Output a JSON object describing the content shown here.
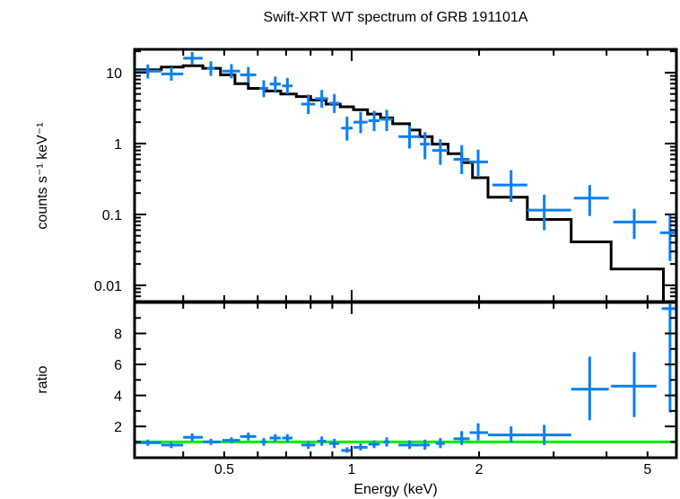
{
  "chart_data": [
    {
      "panel": "spectrum",
      "type": "scatter",
      "title": "Swift-XRT WT spectrum of GRB 191101A",
      "xlabel": "Energy (keV)",
      "ylabel": "counts s⁻¹ keV⁻¹",
      "xscale": "log",
      "yscale": "log",
      "xlim": [
        0.307,
        5.85
      ],
      "ylim": [
        0.0059,
        21.3
      ],
      "yticks": [
        {
          "value": 10,
          "label": "10"
        },
        {
          "value": 1,
          "label": "1"
        },
        {
          "value": 0.1,
          "label": "0.1"
        },
        {
          "value": 0.01,
          "label": "0.01"
        }
      ],
      "grid": false,
      "series": [
        {
          "name": "data",
          "color": "#0a7ff0",
          "style": "crosses",
          "points": [
            {
              "x": 0.33,
              "xlo": 0.307,
              "xhi": 0.355,
              "y": 10.5,
              "ylo": 8.3,
              "yhi": 13.0
            },
            {
              "x": 0.375,
              "xlo": 0.355,
              "xhi": 0.4,
              "y": 9.6,
              "ylo": 7.7,
              "yhi": 12.0
            },
            {
              "x": 0.42,
              "xlo": 0.4,
              "xhi": 0.445,
              "y": 16.0,
              "ylo": 13.0,
              "yhi": 19.5
            },
            {
              "x": 0.465,
              "xlo": 0.455,
              "xhi": 0.475,
              "y": 11.5,
              "ylo": 9.0,
              "yhi": 14.5
            },
            {
              "x": 0.52,
              "xlo": 0.495,
              "xhi": 0.545,
              "y": 10.5,
              "ylo": 8.3,
              "yhi": 13.2
            },
            {
              "x": 0.57,
              "xlo": 0.545,
              "xhi": 0.595,
              "y": 9.3,
              "ylo": 7.2,
              "yhi": 12.0
            },
            {
              "x": 0.62,
              "xlo": 0.605,
              "xhi": 0.635,
              "y": 6.0,
              "ylo": 4.5,
              "yhi": 7.8
            },
            {
              "x": 0.66,
              "xlo": 0.64,
              "xhi": 0.68,
              "y": 6.9,
              "ylo": 5.4,
              "yhi": 8.8
            },
            {
              "x": 0.705,
              "xlo": 0.685,
              "xhi": 0.725,
              "y": 6.5,
              "ylo": 5.0,
              "yhi": 8.4
            },
            {
              "x": 0.79,
              "xlo": 0.76,
              "xhi": 0.82,
              "y": 3.6,
              "ylo": 2.6,
              "yhi": 4.9
            },
            {
              "x": 0.85,
              "xlo": 0.82,
              "xhi": 0.88,
              "y": 4.3,
              "ylo": 3.2,
              "yhi": 5.7
            },
            {
              "x": 0.91,
              "xlo": 0.885,
              "xhi": 0.935,
              "y": 3.7,
              "ylo": 2.7,
              "yhi": 5.0
            },
            {
              "x": 0.975,
              "xlo": 0.945,
              "xhi": 1.005,
              "y": 1.65,
              "ylo": 1.1,
              "yhi": 2.4
            },
            {
              "x": 1.05,
              "xlo": 1.01,
              "xhi": 1.09,
              "y": 2.0,
              "ylo": 1.4,
              "yhi": 2.8
            },
            {
              "x": 1.13,
              "xlo": 1.095,
              "xhi": 1.165,
              "y": 2.1,
              "ylo": 1.5,
              "yhi": 2.9
            },
            {
              "x": 1.21,
              "xlo": 1.17,
              "xhi": 1.25,
              "y": 2.2,
              "ylo": 1.5,
              "yhi": 3.0
            },
            {
              "x": 1.37,
              "xlo": 1.29,
              "xhi": 1.45,
              "y": 1.25,
              "ylo": 0.85,
              "yhi": 1.8
            },
            {
              "x": 1.49,
              "xlo": 1.45,
              "xhi": 1.53,
              "y": 0.98,
              "ylo": 0.6,
              "yhi": 1.45
            },
            {
              "x": 1.62,
              "xlo": 1.55,
              "xhi": 1.69,
              "y": 0.8,
              "ylo": 0.5,
              "yhi": 1.15
            },
            {
              "x": 1.82,
              "xlo": 1.74,
              "xhi": 1.9,
              "y": 0.6,
              "ylo": 0.37,
              "yhi": 0.95
            },
            {
              "x": 1.99,
              "xlo": 1.9,
              "xhi": 2.1,
              "y": 0.55,
              "ylo": 0.35,
              "yhi": 0.82
            },
            {
              "x": 2.38,
              "xlo": 2.15,
              "xhi": 2.6,
              "y": 0.26,
              "ylo": 0.15,
              "yhi": 0.42
            },
            {
              "x": 2.85,
              "xlo": 2.6,
              "xhi": 3.3,
              "y": 0.115,
              "ylo": 0.06,
              "yhi": 0.19
            },
            {
              "x": 3.65,
              "xlo": 3.35,
              "xhi": 4.05,
              "y": 0.17,
              "ylo": 0.095,
              "yhi": 0.26
            },
            {
              "x": 4.65,
              "xlo": 4.15,
              "xhi": 5.25,
              "y": 0.078,
              "ylo": 0.045,
              "yhi": 0.12
            },
            {
              "x": 5.65,
              "xlo": 5.35,
              "xhi": 5.85,
              "y": 0.055,
              "ylo": 0.022,
              "yhi": 0.1
            }
          ]
        },
        {
          "name": "model",
          "color": "#000000",
          "style": "step",
          "steps": [
            {
              "xlo": 0.307,
              "xhi": 0.355,
              "y": 11.0
            },
            {
              "xlo": 0.355,
              "xhi": 0.4,
              "y": 12.0
            },
            {
              "xlo": 0.4,
              "xhi": 0.445,
              "y": 12.5
            },
            {
              "xlo": 0.445,
              "xhi": 0.49,
              "y": 11.5
            },
            {
              "xlo": 0.49,
              "xhi": 0.53,
              "y": 9.3
            },
            {
              "xlo": 0.53,
              "xhi": 0.57,
              "y": 7.0
            },
            {
              "xlo": 0.57,
              "xhi": 0.625,
              "y": 6.0
            },
            {
              "xlo": 0.625,
              "xhi": 0.68,
              "y": 5.5
            },
            {
              "xlo": 0.68,
              "xhi": 0.74,
              "y": 5.0
            },
            {
              "xlo": 0.74,
              "xhi": 0.8,
              "y": 4.6
            },
            {
              "xlo": 0.8,
              "xhi": 0.87,
              "y": 4.1
            },
            {
              "xlo": 0.87,
              "xhi": 0.94,
              "y": 3.6
            },
            {
              "xlo": 0.94,
              "xhi": 1.01,
              "y": 3.3
            },
            {
              "xlo": 1.01,
              "xhi": 1.09,
              "y": 3.0
            },
            {
              "xlo": 1.09,
              "xhi": 1.17,
              "y": 2.6
            },
            {
              "xlo": 1.17,
              "xhi": 1.25,
              "y": 2.3
            },
            {
              "xlo": 1.25,
              "xhi": 1.37,
              "y": 1.9
            },
            {
              "xlo": 1.37,
              "xhi": 1.45,
              "y": 1.55
            },
            {
              "xlo": 1.45,
              "xhi": 1.55,
              "y": 1.25
            },
            {
              "xlo": 1.55,
              "xhi": 1.69,
              "y": 0.98
            },
            {
              "xlo": 1.69,
              "xhi": 1.82,
              "y": 0.72
            },
            {
              "xlo": 1.82,
              "xhi": 1.93,
              "y": 0.54
            },
            {
              "xlo": 1.93,
              "xhi": 2.1,
              "y": 0.33
            },
            {
              "xlo": 2.1,
              "xhi": 2.6,
              "y": 0.175
            },
            {
              "xlo": 2.6,
              "xhi": 3.3,
              "y": 0.085
            },
            {
              "xlo": 3.3,
              "xhi": 4.1,
              "y": 0.041
            },
            {
              "xlo": 4.1,
              "xhi": 5.45,
              "y": 0.017
            },
            {
              "xlo": 5.45,
              "xhi": 5.85,
              "y": 0.0059
            }
          ]
        }
      ]
    },
    {
      "panel": "ratio",
      "type": "scatter",
      "xlabel": "Energy (keV)",
      "ylabel": "ratio",
      "xscale": "log",
      "yscale": "linear",
      "xlim": [
        0.307,
        5.85
      ],
      "ylim": [
        -0.02,
        10.0
      ],
      "xticks": [
        {
          "value": 0.5,
          "label": "0.5"
        },
        {
          "value": 1,
          "label": "1"
        },
        {
          "value": 2,
          "label": "2"
        },
        {
          "value": 5,
          "label": "5"
        }
      ],
      "yticks": [
        {
          "value": 2,
          "label": "2"
        },
        {
          "value": 4,
          "label": "4"
        },
        {
          "value": 6,
          "label": "6"
        },
        {
          "value": 8,
          "label": "8"
        }
      ],
      "reference_line": {
        "y": 1,
        "color": "#00ee00"
      },
      "grid": false,
      "series": [
        {
          "name": "ratio",
          "color": "#0a7ff0",
          "style": "crosses",
          "points": [
            {
              "x": 0.33,
              "xlo": 0.307,
              "xhi": 0.355,
              "y": 0.95,
              "ylo": 0.75,
              "yhi": 1.15
            },
            {
              "x": 0.375,
              "xlo": 0.355,
              "xhi": 0.4,
              "y": 0.8,
              "ylo": 0.6,
              "yhi": 1.0
            },
            {
              "x": 0.42,
              "xlo": 0.4,
              "xhi": 0.445,
              "y": 1.3,
              "ylo": 1.05,
              "yhi": 1.55
            },
            {
              "x": 0.465,
              "xlo": 0.445,
              "xhi": 0.49,
              "y": 1.0,
              "ylo": 0.8,
              "yhi": 1.2
            },
            {
              "x": 0.52,
              "xlo": 0.495,
              "xhi": 0.545,
              "y": 1.1,
              "ylo": 0.9,
              "yhi": 1.3
            },
            {
              "x": 0.57,
              "xlo": 0.545,
              "xhi": 0.595,
              "y": 1.35,
              "ylo": 1.1,
              "yhi": 1.6
            },
            {
              "x": 0.62,
              "xlo": 0.61,
              "xhi": 0.63,
              "y": 1.0,
              "ylo": 0.75,
              "yhi": 1.25
            },
            {
              "x": 0.66,
              "xlo": 0.64,
              "xhi": 0.68,
              "y": 1.25,
              "ylo": 1.0,
              "yhi": 1.5
            },
            {
              "x": 0.705,
              "xlo": 0.685,
              "xhi": 0.725,
              "y": 1.25,
              "ylo": 1.0,
              "yhi": 1.5
            },
            {
              "x": 0.79,
              "xlo": 0.76,
              "xhi": 0.82,
              "y": 0.8,
              "ylo": 0.55,
              "yhi": 1.05
            },
            {
              "x": 0.85,
              "xlo": 0.83,
              "xhi": 0.87,
              "y": 1.05,
              "ylo": 0.75,
              "yhi": 1.35
            },
            {
              "x": 0.91,
              "xlo": 0.885,
              "xhi": 0.935,
              "y": 0.9,
              "ylo": 0.6,
              "yhi": 1.2
            },
            {
              "x": 0.975,
              "xlo": 0.945,
              "xhi": 1.005,
              "y": 0.45,
              "ylo": 0.3,
              "yhi": 0.65
            },
            {
              "x": 1.05,
              "xlo": 1.01,
              "xhi": 1.09,
              "y": 0.65,
              "ylo": 0.45,
              "yhi": 0.9
            },
            {
              "x": 1.13,
              "xlo": 1.095,
              "xhi": 1.165,
              "y": 0.85,
              "ylo": 0.6,
              "yhi": 1.1
            },
            {
              "x": 1.21,
              "xlo": 1.19,
              "xhi": 1.23,
              "y": 1.0,
              "ylo": 0.7,
              "yhi": 1.3
            },
            {
              "x": 1.37,
              "xlo": 1.29,
              "xhi": 1.45,
              "y": 0.8,
              "ylo": 0.55,
              "yhi": 1.1
            },
            {
              "x": 1.49,
              "xlo": 1.45,
              "xhi": 1.53,
              "y": 0.8,
              "ylo": 0.5,
              "yhi": 1.15
            },
            {
              "x": 1.62,
              "xlo": 1.58,
              "xhi": 1.66,
              "y": 0.9,
              "ylo": 0.6,
              "yhi": 1.25
            },
            {
              "x": 1.82,
              "xlo": 1.74,
              "xhi": 1.9,
              "y": 1.2,
              "ylo": 0.8,
              "yhi": 1.7
            },
            {
              "x": 1.99,
              "xlo": 1.9,
              "xhi": 2.1,
              "y": 1.6,
              "ylo": 1.1,
              "yhi": 2.2
            },
            {
              "x": 2.38,
              "xlo": 2.1,
              "xhi": 2.6,
              "y": 1.45,
              "ylo": 0.95,
              "yhi": 2.0
            },
            {
              "x": 2.85,
              "xlo": 2.6,
              "xhi": 3.3,
              "y": 1.45,
              "ylo": 0.8,
              "yhi": 2.1
            },
            {
              "x": 3.65,
              "xlo": 3.3,
              "xhi": 4.05,
              "y": 4.4,
              "ylo": 2.4,
              "yhi": 6.5
            },
            {
              "x": 4.65,
              "xlo": 4.1,
              "xhi": 5.25,
              "y": 4.6,
              "ylo": 2.6,
              "yhi": 6.8
            },
            {
              "x": 5.65,
              "xlo": 5.4,
              "xhi": 5.85,
              "y": 9.6,
              "ylo": 2.9,
              "yhi": 9.9
            }
          ]
        }
      ]
    }
  ]
}
